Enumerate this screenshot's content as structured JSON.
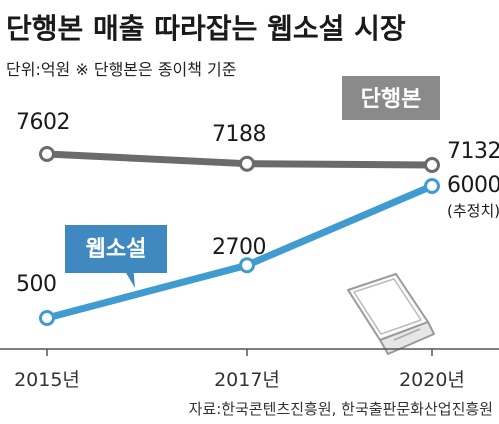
{
  "title": "단행본 매출 따라잡는 웹소설 시장",
  "unit_note": "단위:억원  ※ 단행본은 종이책 기준",
  "source": "자료:한국콘텐츠진흥원, 한국출판문화산업진흥원",
  "colors": {
    "print_series": "#6b6b6b",
    "web_series": "#3f9bd0",
    "web_label_bg": "#3f88c0",
    "print_label_bg": "#8a8a8a",
    "axis": "#555555"
  },
  "icons": [
    "laptop-icon"
  ],
  "chart_data": {
    "type": "line",
    "title": "단행본 매출 따라잡는 웹소설 시장",
    "unit": "억원",
    "x": [
      "2015년",
      "2017년",
      "2020년"
    ],
    "x_ticks": [
      "2015년",
      "2017년",
      "2020년"
    ],
    "series": [
      {
        "name": "단행본",
        "values": [
          7602,
          7188,
          7132
        ],
        "labels": [
          "7602",
          "7188",
          "7132"
        ]
      },
      {
        "name": "웹소설",
        "values": [
          500,
          2700,
          6000
        ],
        "labels": [
          "500",
          "2700",
          "6000"
        ],
        "annotations": [
          null,
          null,
          "(추정치)"
        ]
      }
    ],
    "grid": false
  }
}
